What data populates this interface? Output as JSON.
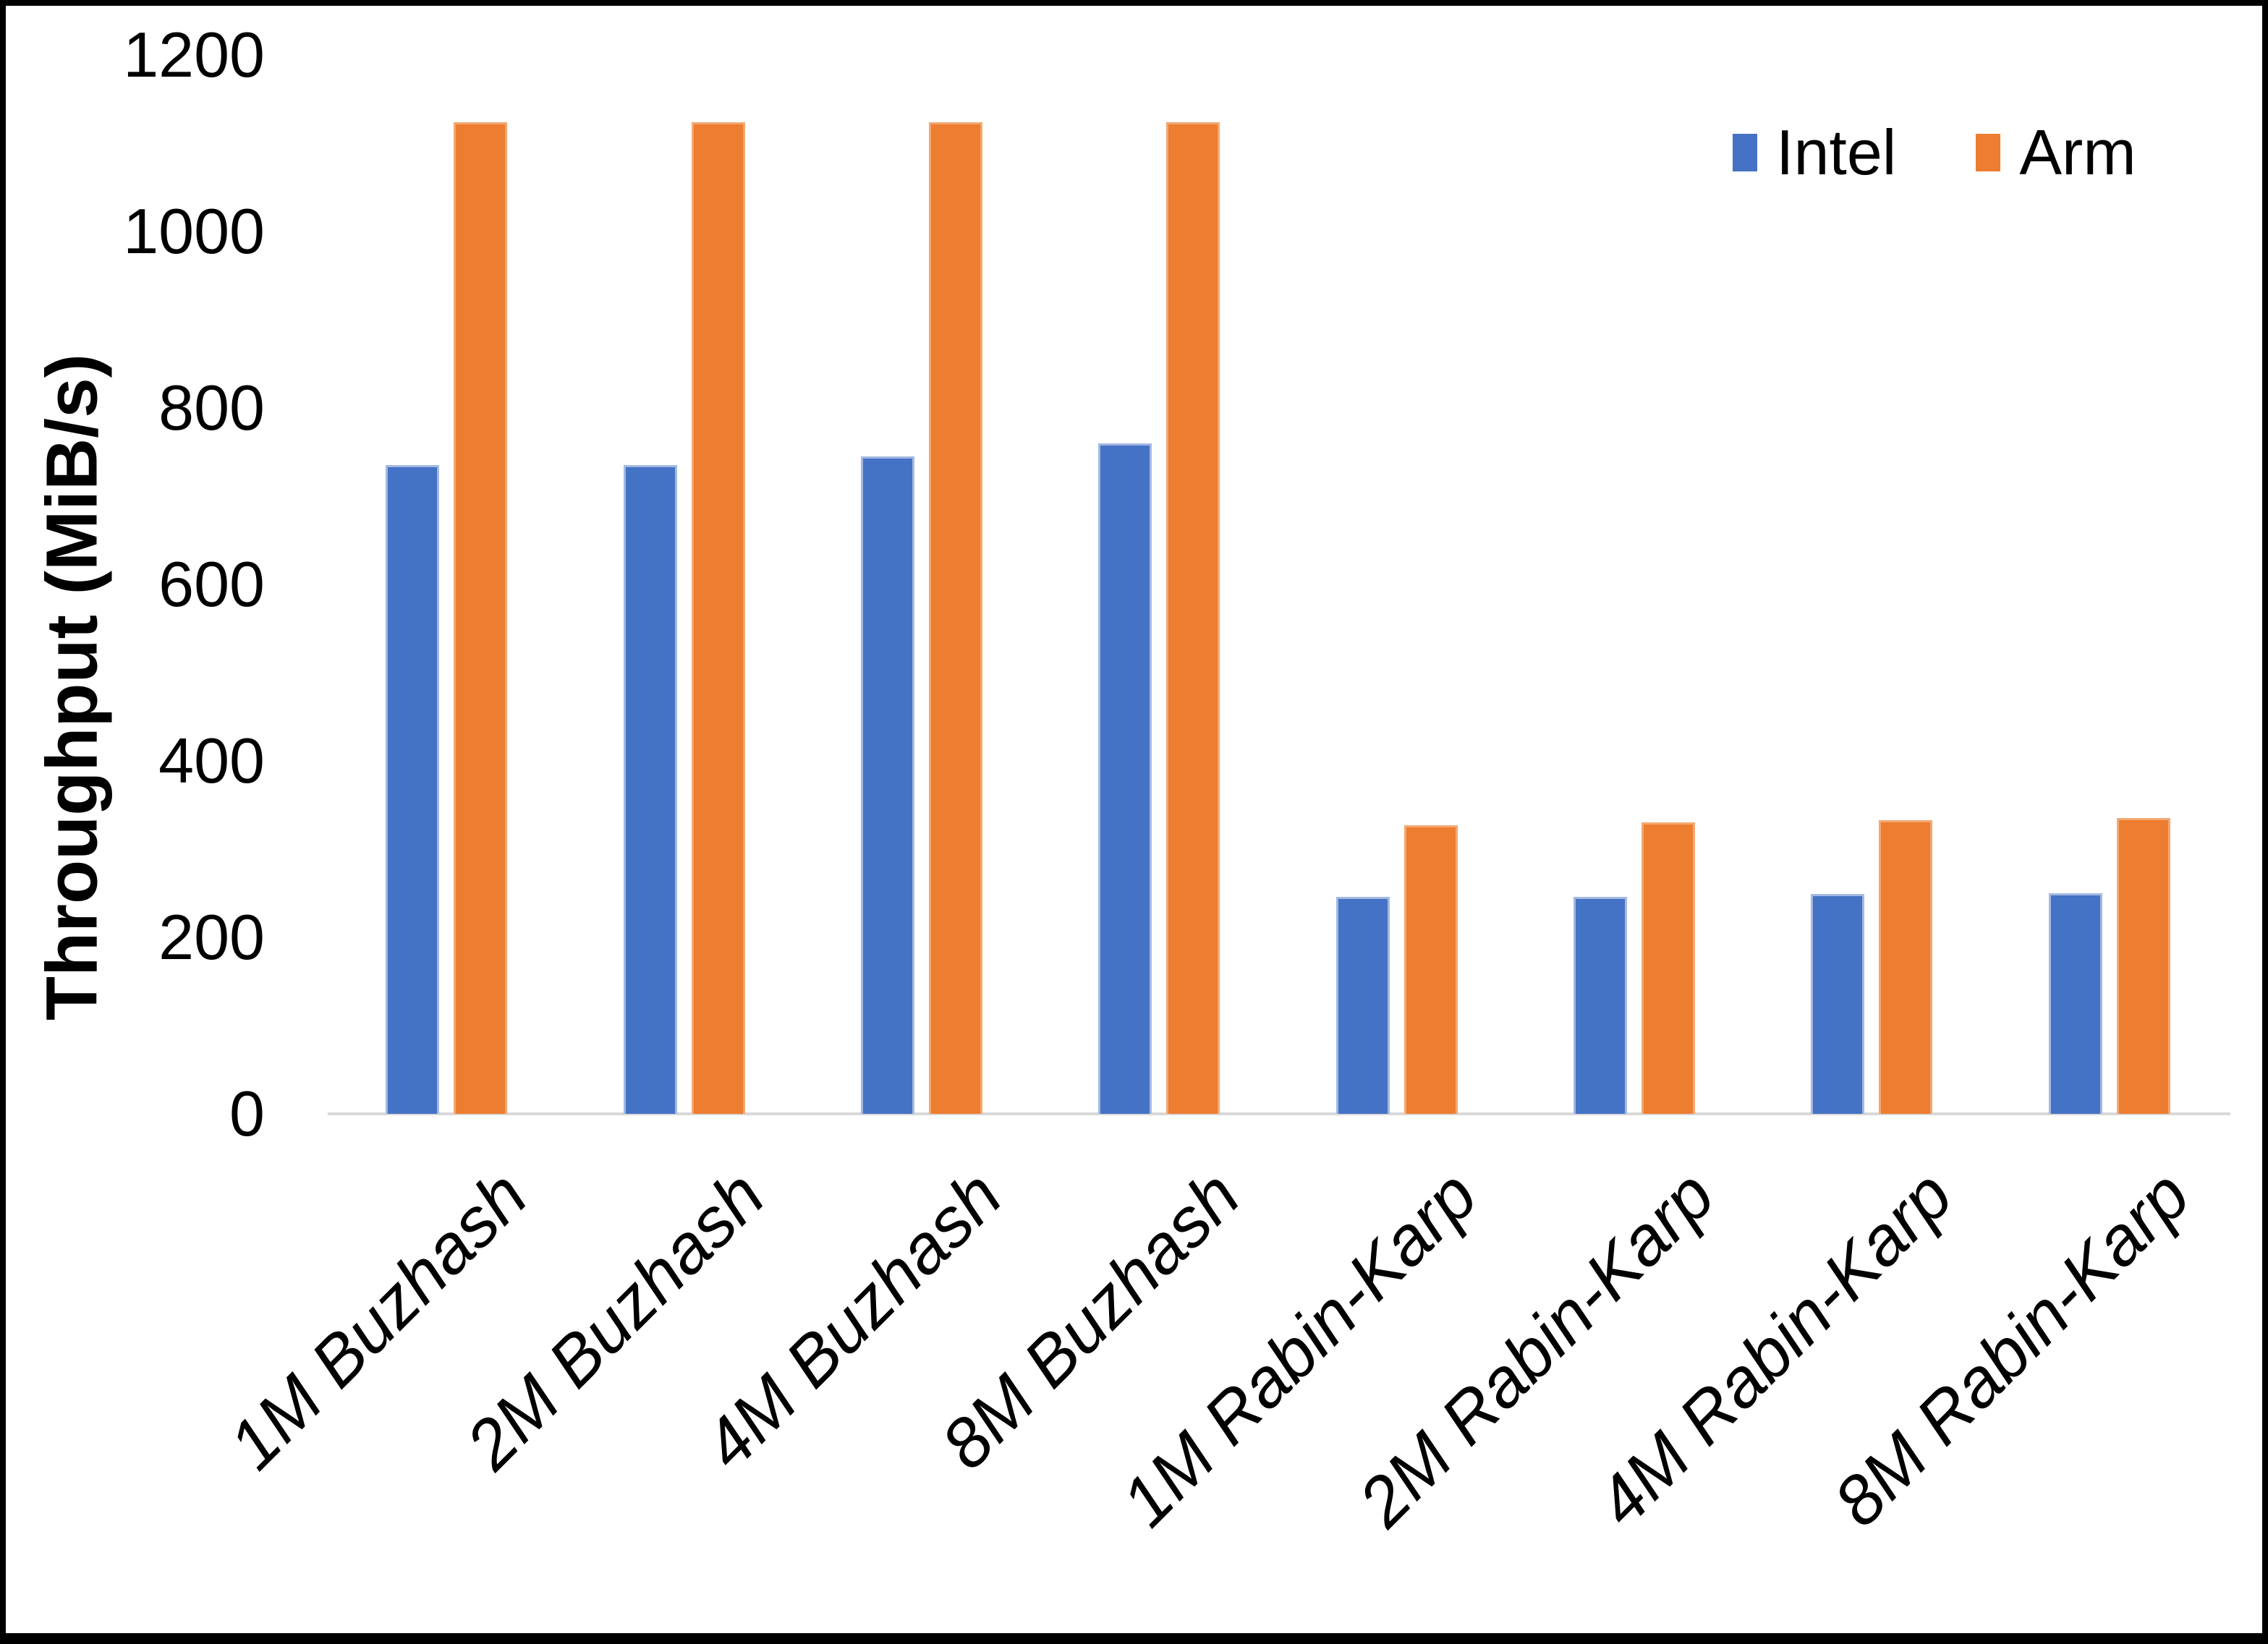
{
  "chart_data": {
    "type": "bar",
    "title": "",
    "xlabel": "",
    "ylabel": "Throughput (MiB/s)",
    "categories": [
      "1M Buzhash",
      "2M Buzhash",
      "4M Buzhash",
      "8M Buzhash",
      "1M Rabin-Karp",
      "2M Rabin-Karp",
      "4M Rabin-Karp",
      "8M Rabin-Karp"
    ],
    "series": [
      {
        "name": "Intel",
        "color": "#4472C4",
        "values": [
          735,
          735,
          745,
          760,
          246,
          246,
          249,
          250
        ]
      },
      {
        "name": "Arm",
        "color": "#ED7D31",
        "values": [
          1124,
          1124,
          1124,
          1124,
          327,
          330,
          333,
          335
        ]
      }
    ],
    "ylim": [
      0,
      1200
    ],
    "yticks": [
      0,
      200,
      400,
      600,
      800,
      1000,
      1200
    ],
    "grid": false,
    "legend_position": "top-right",
    "axis_line_color": "#d9d9d9",
    "category_label_style": "italic, rotated 45deg"
  }
}
